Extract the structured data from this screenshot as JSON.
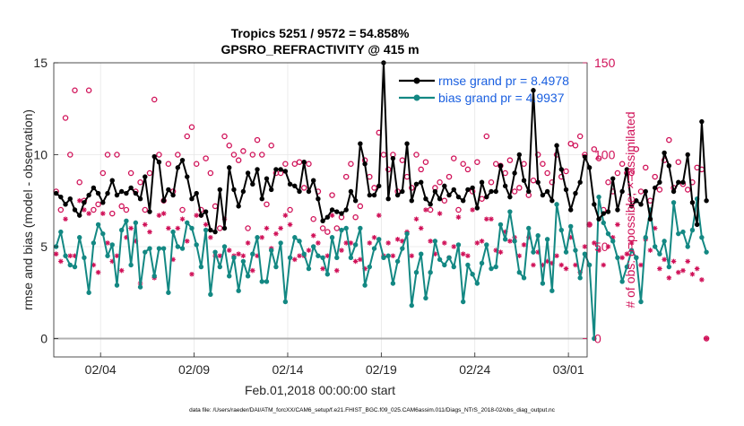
{
  "title": {
    "line1": "Tropics 5251 / 9572 = 54.858%",
    "line2": "GPSRO_REFRACTIVITY @ 415 m"
  },
  "footer": "data file: /Users/raeder/DAI/ATM_forcXX/CAM6_setup/f.e21.FHIST_BGC.f09_025.CAM6assim.011/Diags_NTrS_2018-02/obs_diag_output.nc",
  "colors": {
    "rmse": "#000000",
    "bias": "#138883",
    "obs": "#d01158",
    "legend_text": "#1a5fe0",
    "axis": "#262626",
    "grid": "#e6e6e6",
    "zero": "#b0b0b0"
  },
  "chart_data": {
    "type": "line",
    "x_label": "Feb.01,2018 00:00:00 start",
    "ylabel_left": "rmse and bias (model - observation)",
    "ylabel_right": "# of obs: o=possible; ×=assimilated",
    "xlim": [
      0,
      28.5
    ],
    "ylim_left": [
      -1,
      15
    ],
    "ylim_right": [
      -10,
      150
    ],
    "x_ticks": [
      {
        "x": 2.5,
        "label": "02/04"
      },
      {
        "x": 7.5,
        "label": "02/09"
      },
      {
        "x": 12.5,
        "label": "02/14"
      },
      {
        "x": 17.5,
        "label": "02/19"
      },
      {
        "x": 22.5,
        "label": "02/24"
      },
      {
        "x": 27.5,
        "label": "03/01"
      }
    ],
    "y_ticks_left": [
      {
        "v": 0,
        "label": "0"
      },
      {
        "v": 5,
        "label": "5"
      },
      {
        "v": 10,
        "label": "10"
      },
      {
        "v": 15,
        "label": "15"
      }
    ],
    "y_ticks_right": [
      {
        "v": 0,
        "label": "0"
      },
      {
        "v": 50,
        "label": "50"
      },
      {
        "v": 100,
        "label": "100"
      },
      {
        "v": 150,
        "label": "150"
      }
    ],
    "x_start": 0.125,
    "x_step": 0.25,
    "series": [
      {
        "name": "rmse",
        "legend": "rmse grand pr = 8.4978",
        "values": [
          7.9,
          7.7,
          7.3,
          7.6,
          7.0,
          6.7,
          7.4,
          7.8,
          8.2,
          7.9,
          7.4,
          7.9,
          8.6,
          7.8,
          8.0,
          7.9,
          8.2,
          7.9,
          7.6,
          8.8,
          6.9,
          9.9,
          9.6,
          7.5,
          8.1,
          7.8,
          9.3,
          9.7,
          8.8,
          7.6,
          7.9,
          6.7,
          6.9,
          5.9,
          5.8,
          8.1,
          6.0,
          9.3,
          8.1,
          7.2,
          8.0,
          9.0,
          8.4,
          9.2,
          7.6,
          8.7,
          8.1,
          9.2,
          9.2,
          9.1,
          8.4,
          8.3,
          8.0,
          9.6,
          8.0,
          8.6,
          7.6,
          6.4,
          6.6,
          7.0,
          6.9,
          6.8,
          7.0,
          8.0,
          7.5,
          10.6,
          9.5,
          7.8,
          7.8,
          8.3,
          15.0,
          7.6,
          9.8,
          7.8,
          8.0,
          10.6,
          7.5,
          8.4,
          8.5,
          7.6,
          7.3,
          8.0,
          7.6,
          8.3,
          7.8,
          8.1,
          7.7,
          7.5,
          8.1,
          8.2,
          7.1,
          8.5,
          7.7,
          8.0,
          8.0,
          9.4,
          8.3,
          7.7,
          9.0,
          10.0,
          8.6,
          8.0,
          13.5,
          8.5,
          7.8,
          8.0,
          7.5,
          10.5,
          9.2,
          8.1,
          7.0,
          7.9,
          8.5,
          9.9,
          9.3,
          7.3,
          6.5,
          6.8,
          6.9,
          8.7,
          7.0,
          8.0,
          9.2,
          7.2,
          7.5,
          7.3,
          8.0,
          6.5,
          8.2,
          8.5,
          10.1,
          9.4,
          8.0,
          8.5,
          8.5,
          10.0,
          7.4,
          6.2,
          11.8,
          7.5
        ]
      },
      {
        "name": "bias",
        "legend": "bias grand pr = 4.9937",
        "values": [
          5.0,
          5.8,
          4.5,
          4.0,
          3.9,
          5.5,
          4.4,
          2.5,
          5.2,
          6.2,
          5.7,
          4.5,
          5.1,
          2.9,
          5.9,
          6.4,
          4.0,
          6.3,
          2.8,
          4.7,
          4.9,
          3.4,
          4.9,
          4.9,
          2.5,
          5.8,
          5.0,
          4.9,
          6.3,
          6.0,
          5.1,
          3.9,
          5.9,
          2.4,
          4.7,
          3.9,
          5.0,
          3.4,
          4.4,
          2.6,
          4.2,
          3.4,
          4.6,
          5.5,
          3.1,
          3.1,
          4.8,
          3.9,
          5.2,
          2.0,
          4.4,
          5.5,
          5.3,
          4.6,
          3.8,
          5.0,
          4.5,
          4.4,
          3.5,
          5.5,
          4.4,
          5.9,
          6.0,
          4.4,
          5.1,
          6.0,
          2.9,
          3.9,
          4.9,
          5.4,
          4.4,
          4.5,
          3.0,
          4.2,
          4.9,
          5.7,
          1.8,
          3.6,
          4.6,
          2.2,
          3.6,
          5.3,
          4.3,
          4.0,
          4.4,
          3.9,
          5.1,
          2.0,
          4.0,
          3.5,
          3.0,
          4.1,
          5.1,
          3.8,
          3.9,
          6.2,
          5.4,
          6.9,
          5.3,
          3.6,
          3.3,
          6.0,
          4.7,
          5.6,
          3.0,
          5.4,
          2.6,
          7.3,
          5.9,
          4.7,
          6.1,
          4.8,
          3.3,
          4.6,
          4.0,
          0.0,
          7.7,
          6.3,
          5.7,
          5.3,
          4.4,
          3.1,
          3.9,
          4.8,
          4.4,
          2.0,
          5.5,
          7.0,
          5.0,
          4.6,
          5.3,
          3.9,
          7.4,
          5.7,
          5.8,
          5.0,
          5.9,
          7.6,
          5.5,
          4.7
        ]
      }
    ],
    "obs_possible": [
      80,
      70,
      120,
      100,
      135,
      85,
      75,
      135,
      70,
      73,
      90,
      100,
      68,
      100,
      72,
      70,
      90,
      80,
      85,
      70,
      90,
      130,
      100,
      75,
      95,
      80,
      100,
      70,
      110,
      115,
      95,
      70,
      98,
      90,
      72,
      60,
      110,
      105,
      100,
      97,
      102,
      60,
      100,
      108,
      100,
      73,
      105,
      90,
      90,
      95,
      70,
      95,
      96,
      82,
      95,
      65,
      80,
      60,
      58,
      78,
      60,
      66,
      88,
      95,
      66,
      72,
      97,
      88,
      82,
      112,
      100,
      92,
      100,
      80,
      97,
      88,
      82,
      100,
      92,
      96,
      70,
      82,
      85,
      75,
      88,
      98,
      70,
      95,
      92,
      80,
      96,
      76,
      110,
      85,
      95,
      94,
      90,
      97,
      80,
      82,
      95,
      78,
      86,
      100,
      95,
      90,
      85,
      100,
      88,
      91,
      106,
      105,
      110,
      100,
      62,
      103,
      98,
      70,
      85,
      80,
      90,
      95,
      90,
      90,
      103,
      80,
      93,
      75,
      88,
      81,
      97,
      108,
      82,
      96,
      84,
      81,
      85,
      93,
      92,
      0
    ],
    "obs_assimilated": [
      46,
      42,
      65,
      45,
      45,
      75,
      70,
      68,
      40,
      36,
      68,
      52,
      42,
      45,
      37,
      55,
      60,
      53,
      30,
      62,
      58,
      33,
      67,
      68,
      60,
      43,
      60,
      65,
      53,
      35,
      67,
      67,
      62,
      55,
      45,
      45,
      65,
      48,
      45,
      46,
      45,
      52,
      37,
      45,
      55,
      60,
      49,
      57,
      60,
      67,
      62,
      43,
      45,
      45,
      48,
      56,
      52,
      38,
      45,
      67,
      37,
      48,
      52,
      52,
      42,
      43,
      38,
      52,
      55,
      67,
      45,
      52,
      45,
      54,
      53,
      58,
      45,
      65,
      60,
      70,
      53,
      46,
      68,
      52,
      44,
      50,
      66,
      46,
      45,
      70,
      52,
      53,
      65,
      65,
      48,
      47,
      58,
      53,
      55,
      45,
      51,
      55,
      40,
      47,
      40,
      42,
      41,
      45,
      40,
      38,
      55,
      40,
      36,
      50,
      62,
      52,
      48,
      40,
      50,
      55,
      62,
      44,
      46,
      52,
      44,
      40,
      54,
      48,
      60,
      38,
      43,
      33,
      42,
      36,
      37,
      42,
      35,
      38,
      32,
      0
    ]
  }
}
